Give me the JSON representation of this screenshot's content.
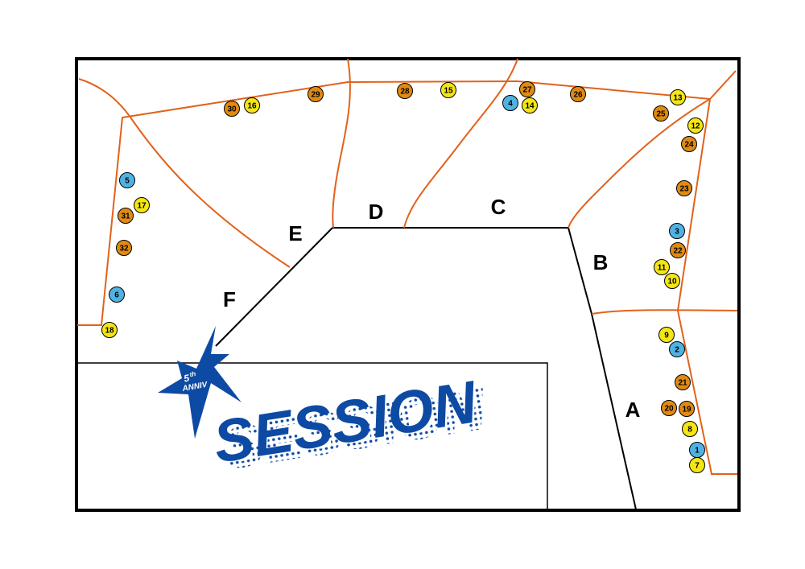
{
  "colors": {
    "background": "#ffffff",
    "border": "#000000",
    "boundary": "#e2621b",
    "marker_blue": "#4fb2e3",
    "marker_yellow": "#f4e514",
    "marker_orange": "#e08a12",
    "logo": "#0d4aa3"
  },
  "zones": {
    "A": "A",
    "B": "B",
    "C": "C",
    "D": "D",
    "E": "E",
    "F": "F"
  },
  "logo": {
    "main": "SESSION",
    "badge_number": "5",
    "badge_suffix": "th",
    "badge_text": "ANNIV"
  },
  "markers": [
    {
      "label": "1",
      "color": "blue"
    },
    {
      "label": "2",
      "color": "blue"
    },
    {
      "label": "3",
      "color": "blue"
    },
    {
      "label": "4",
      "color": "blue"
    },
    {
      "label": "5",
      "color": "blue"
    },
    {
      "label": "6",
      "color": "blue"
    },
    {
      "label": "7",
      "color": "yellow"
    },
    {
      "label": "8",
      "color": "yellow"
    },
    {
      "label": "9",
      "color": "yellow"
    },
    {
      "label": "10",
      "color": "yellow"
    },
    {
      "label": "11",
      "color": "yellow"
    },
    {
      "label": "12",
      "color": "yellow"
    },
    {
      "label": "13",
      "color": "yellow"
    },
    {
      "label": "14",
      "color": "yellow"
    },
    {
      "label": "15",
      "color": "yellow"
    },
    {
      "label": "16",
      "color": "yellow"
    },
    {
      "label": "17",
      "color": "yellow"
    },
    {
      "label": "18",
      "color": "yellow"
    },
    {
      "label": "19",
      "color": "orange"
    },
    {
      "label": "20",
      "color": "orange"
    },
    {
      "label": "21",
      "color": "orange"
    },
    {
      "label": "22",
      "color": "orange"
    },
    {
      "label": "23",
      "color": "orange"
    },
    {
      "label": "24",
      "color": "orange"
    },
    {
      "label": "25",
      "color": "orange"
    },
    {
      "label": "26",
      "color": "orange"
    },
    {
      "label": "27",
      "color": "orange"
    },
    {
      "label": "28",
      "color": "orange"
    },
    {
      "label": "29",
      "color": "orange"
    },
    {
      "label": "30",
      "color": "orange"
    },
    {
      "label": "31",
      "color": "orange"
    },
    {
      "label": "32",
      "color": "orange"
    }
  ]
}
